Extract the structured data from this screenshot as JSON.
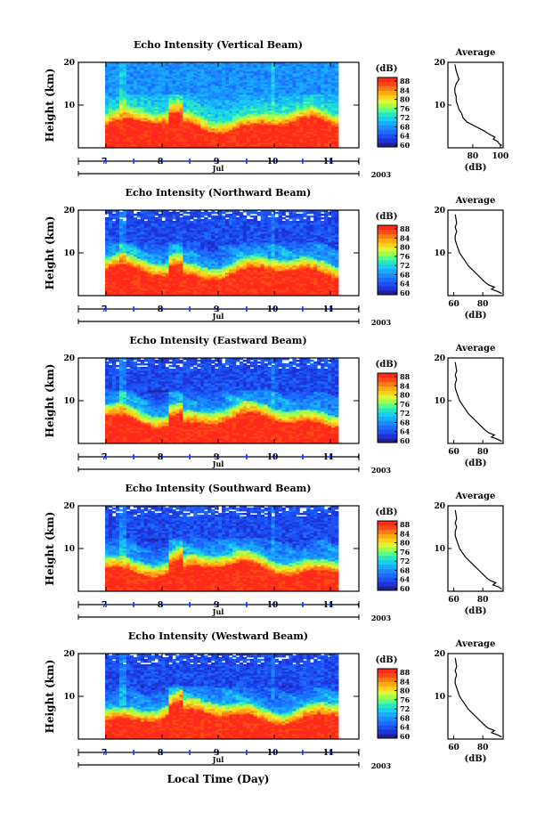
{
  "x_axis": {
    "day_ticks": [
      "7",
      "8",
      "9",
      "10",
      "11"
    ],
    "month": "Jul",
    "year": "2003",
    "label": "Local Time (Day)"
  },
  "colorbar": {
    "unit": "(dB)",
    "ticks": [
      "88",
      "84",
      "80",
      "76",
      "72",
      "68",
      "64",
      "60"
    ],
    "colors": [
      "#ff2a1a",
      "#ff5a14",
      "#ff9a10",
      "#ffd21a",
      "#c8ff3c",
      "#50ff8c",
      "#18e6d8",
      "#1aa8ff",
      "#1c64ff",
      "#1e34d8",
      "#22209c"
    ]
  },
  "chart_data": [
    {
      "type": "heatmap",
      "title": "Echo Intensity (Vertical Beam)",
      "ylabel": "Height (km)",
      "ylim": [
        0,
        20
      ],
      "yticks": [
        "20",
        "10"
      ],
      "xlabel": "",
      "profile": {
        "title": "Average",
        "xlabel": "(dB)",
        "xticks": [
          "80",
          "100"
        ],
        "xlim": [
          62,
          102
        ],
        "x": [
          101,
          99,
          98,
          95,
          96,
          93,
          88,
          82,
          76,
          73,
          72,
          70,
          69,
          68,
          68,
          67,
          67,
          68,
          70,
          69,
          68,
          67
        ],
        "y": [
          0.5,
          1.0,
          1.5,
          2.0,
          2.5,
          3.0,
          4.0,
          5.0,
          6.0,
          7.0,
          8.0,
          9.0,
          10.0,
          11.0,
          12.0,
          13.0,
          14.0,
          15.0,
          16.0,
          17.0,
          18.0,
          19.5
        ]
      }
    },
    {
      "type": "heatmap",
      "title": "Echo Intensity (Northward Beam)",
      "ylabel": "Height (km)",
      "ylim": [
        0,
        20
      ],
      "yticks": [
        "20",
        "10"
      ],
      "xlabel": "",
      "profile": {
        "title": "Average",
        "xlabel": "(dB)",
        "xticks": [
          "60",
          "80"
        ],
        "xlim": [
          56,
          94
        ],
        "x": [
          93,
          90,
          86,
          88,
          84,
          82,
          79,
          76,
          73,
          70,
          68,
          66,
          64,
          63,
          62,
          61,
          61,
          62,
          61,
          62,
          61
        ],
        "y": [
          0.5,
          1.0,
          1.5,
          2.0,
          2.5,
          3.0,
          4.0,
          5.0,
          6.0,
          7.0,
          8.0,
          9.0,
          10.0,
          11.0,
          12.0,
          13.0,
          14.0,
          15.0,
          16.0,
          17.0,
          19.0
        ]
      }
    },
    {
      "type": "heatmap",
      "title": "Echo Intensity (Eastward Beam)",
      "ylabel": "Height (km)",
      "ylim": [
        0,
        20
      ],
      "yticks": [
        "20",
        "10"
      ],
      "xlabel": "",
      "profile": {
        "title": "Average",
        "xlabel": "(dB)",
        "xticks": [
          "60",
          "80"
        ],
        "xlim": [
          56,
          94
        ],
        "x": [
          93,
          90,
          86,
          88,
          84,
          82,
          79,
          76,
          73,
          70,
          68,
          66,
          64,
          63,
          62,
          61,
          61,
          62,
          61,
          62,
          61
        ],
        "y": [
          0.5,
          1.0,
          1.5,
          2.0,
          2.5,
          3.0,
          4.0,
          5.0,
          6.0,
          7.0,
          8.0,
          9.0,
          10.0,
          11.0,
          12.0,
          13.0,
          14.0,
          15.0,
          16.0,
          17.0,
          19.0
        ]
      }
    },
    {
      "type": "heatmap",
      "title": "Echo Intensity (Southward Beam)",
      "ylabel": "Height (km)",
      "ylim": [
        0,
        20
      ],
      "yticks": [
        "20",
        "10"
      ],
      "xlabel": "",
      "profile": {
        "title": "Average",
        "xlabel": "(dB)",
        "xticks": [
          "60",
          "80"
        ],
        "xlim": [
          56,
          94
        ],
        "x": [
          93,
          91,
          87,
          89,
          85,
          83,
          80,
          77,
          74,
          71,
          68,
          66,
          64,
          63,
          62,
          61,
          61,
          62,
          61,
          62,
          61
        ],
        "y": [
          0.5,
          1.0,
          1.5,
          2.0,
          2.5,
          3.0,
          4.0,
          5.0,
          6.0,
          7.0,
          8.0,
          9.0,
          10.0,
          11.0,
          12.0,
          13.0,
          14.0,
          15.0,
          16.0,
          17.0,
          19.0
        ]
      }
    },
    {
      "type": "heatmap",
      "title": "Echo Intensity (Westward Beam)",
      "ylabel": "Height (km)",
      "ylim": [
        0,
        20
      ],
      "yticks": [
        "20",
        "10"
      ],
      "xlabel": "Local Time (Day)",
      "profile": {
        "title": "Average",
        "xlabel": "(dB)",
        "xticks": [
          "60",
          "80"
        ],
        "xlim": [
          56,
          94
        ],
        "x": [
          93,
          90,
          86,
          88,
          84,
          82,
          79,
          76,
          73,
          70,
          68,
          66,
          64,
          63,
          62,
          61,
          61,
          62,
          61,
          62,
          61
        ],
        "y": [
          0.5,
          1.0,
          1.5,
          2.0,
          2.5,
          3.0,
          4.0,
          5.0,
          6.0,
          7.0,
          8.0,
          9.0,
          10.0,
          11.0,
          12.0,
          13.0,
          14.0,
          15.0,
          16.0,
          17.0,
          19.0
        ]
      }
    }
  ]
}
